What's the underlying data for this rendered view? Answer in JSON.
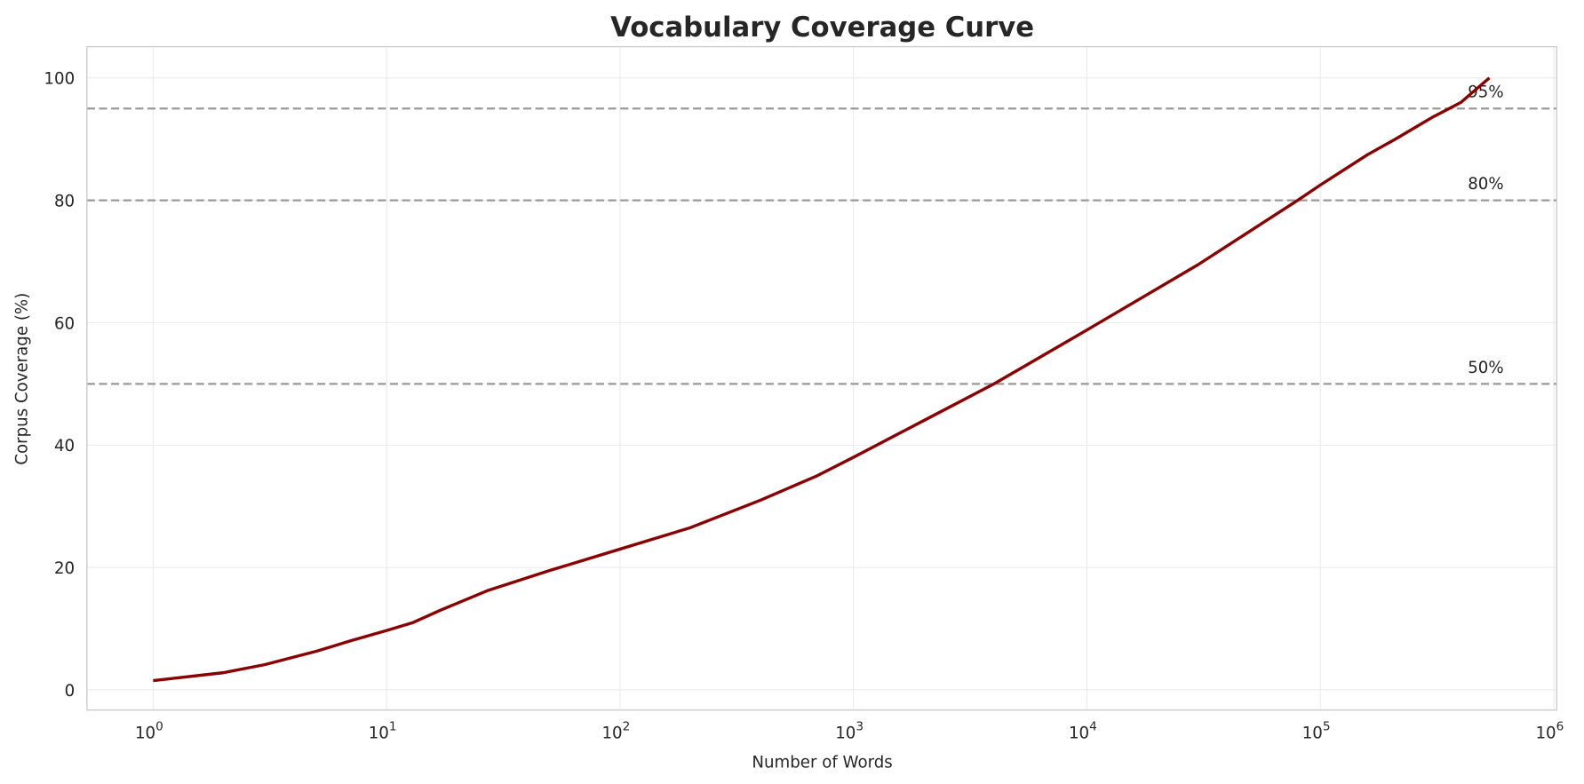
{
  "chart_data": {
    "type": "line",
    "title": "Vocabulary Coverage Curve",
    "xlabel": "Number of Words",
    "ylabel": "Corpus Coverage (%)",
    "xscale": "log",
    "xlim": [
      0.52,
      1030000
    ],
    "ylim": [
      -3.3,
      105.1
    ],
    "grid": true,
    "x_ticks": [
      {
        "value": 1,
        "base": "10",
        "exp": "0"
      },
      {
        "value": 10,
        "base": "10",
        "exp": "1"
      },
      {
        "value": 100,
        "base": "10",
        "exp": "2"
      },
      {
        "value": 1000,
        "base": "10",
        "exp": "3"
      },
      {
        "value": 10000,
        "base": "10",
        "exp": "4"
      },
      {
        "value": 100000,
        "base": "10",
        "exp": "5"
      },
      {
        "value": 1000000,
        "base": "10",
        "exp": "6"
      }
    ],
    "y_ticks": [
      {
        "value": 0,
        "label": "0"
      },
      {
        "value": 20,
        "label": "20"
      },
      {
        "value": 40,
        "label": "40"
      },
      {
        "value": 60,
        "label": "60"
      },
      {
        "value": 80,
        "label": "80"
      },
      {
        "value": 100,
        "label": "100"
      }
    ],
    "series": [
      {
        "color": "#8b0000",
        "x": [
          1,
          2,
          3,
          5,
          7,
          10,
          13,
          17,
          27,
          50,
          100,
          200,
          400,
          700,
          1000,
          2000,
          4000,
          10000,
          30000,
          80000,
          100000,
          160000,
          210000,
          300000,
          400000,
          530000
        ],
        "y": [
          1.5,
          2.8,
          4.1,
          6.3,
          8.0,
          9.7,
          11.0,
          13.0,
          16.2,
          19.5,
          23.0,
          26.5,
          31.0,
          35.0,
          38.0,
          44.0,
          50.0,
          58.8,
          69.5,
          80.0,
          82.5,
          87.5,
          90.0,
          93.5,
          96.0,
          100.0
        ]
      }
    ],
    "reference_lines": [
      {
        "y": 50,
        "label": "50%",
        "color": "#999999",
        "style": "dashed"
      },
      {
        "y": 80,
        "label": "80%",
        "color": "#999999",
        "style": "dashed"
      },
      {
        "y": 95,
        "label": "95%",
        "color": "#999999",
        "style": "dashed"
      }
    ]
  }
}
